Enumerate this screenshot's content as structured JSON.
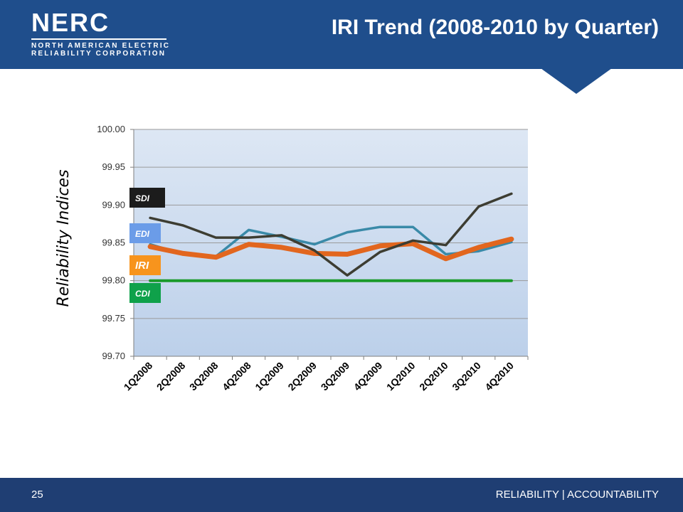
{
  "header": {
    "logo_main": "NERC",
    "logo_sub_1": "NORTH AMERICAN ELECTRIC",
    "logo_sub_2": "RELIABILITY CORPORATION",
    "title": "IRI Trend (2008-2010 by Quarter)"
  },
  "footer": {
    "page_number": "25",
    "tagline": "RELIABILITY | ACCOUNTABILITY"
  },
  "colors": {
    "header_bg": "#1f4e8c",
    "SDI": "#3d3d32",
    "EDI": "#3a8aa8",
    "IRI": "#e2661e",
    "CDI": "#1a9a2a"
  },
  "chart_data": {
    "type": "line",
    "title": "",
    "xlabel": "",
    "ylabel": "Reliability Indices",
    "ylim": [
      99.7,
      100.0
    ],
    "yticks": [
      "99.70",
      "99.75",
      "99.80",
      "99.85",
      "99.90",
      "99.95",
      "100.00"
    ],
    "grid": true,
    "categories": [
      "1Q2008",
      "2Q2008",
      "3Q2008",
      "4Q2008",
      "1Q2009",
      "2Q2009",
      "3Q2009",
      "4Q2009",
      "1Q2010",
      "2Q2010",
      "3Q2010",
      "4Q2010"
    ],
    "series": [
      {
        "name": "SDI",
        "values": [
          99.883,
          99.873,
          99.857,
          99.857,
          99.86,
          99.84,
          99.807,
          99.838,
          99.853,
          99.847,
          99.898,
          99.915
        ]
      },
      {
        "name": "EDI",
        "values": [
          99.848,
          99.835,
          99.832,
          99.867,
          99.858,
          99.848,
          99.864,
          99.871,
          99.871,
          99.835,
          99.839,
          99.851
        ]
      },
      {
        "name": "IRI",
        "values": [
          99.845,
          99.836,
          99.831,
          99.848,
          99.844,
          99.836,
          99.835,
          99.846,
          99.849,
          99.829,
          99.844,
          99.855
        ]
      },
      {
        "name": "CDI",
        "values": [
          99.8,
          99.8,
          99.8,
          99.8,
          99.8,
          99.8,
          99.8,
          99.8,
          99.8,
          99.8,
          99.8,
          99.8
        ]
      }
    ]
  }
}
